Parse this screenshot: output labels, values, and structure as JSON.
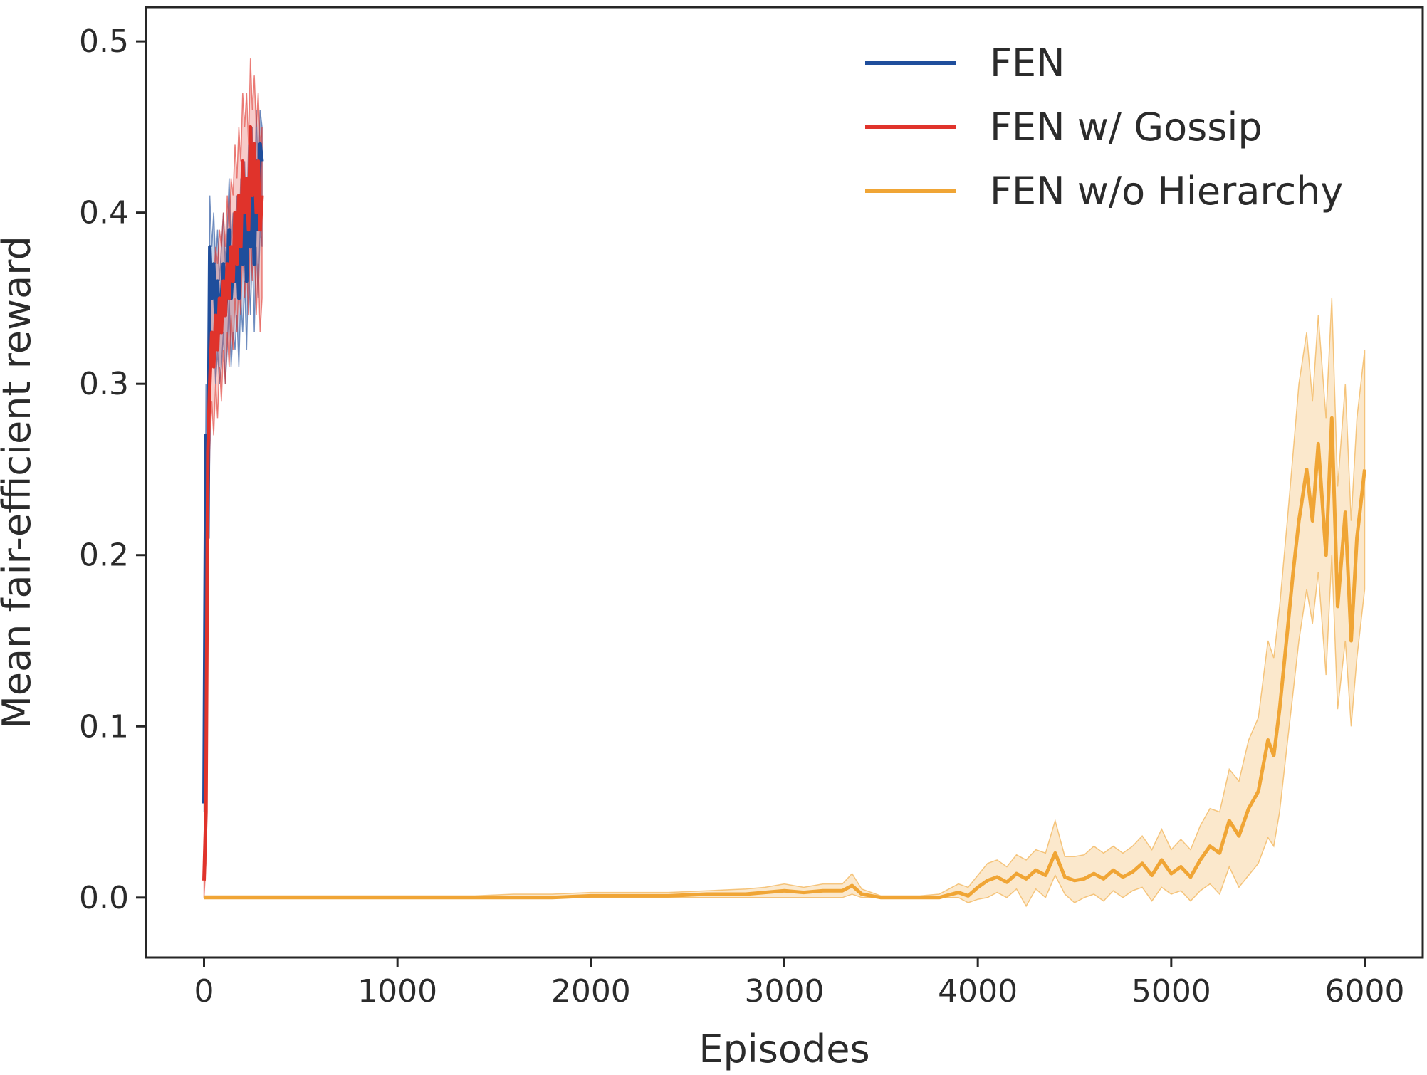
{
  "chart_data": {
    "type": "line",
    "title": "",
    "xlabel": "Episodes",
    "ylabel": "Mean fair-efficient reward",
    "xlim": [
      -300,
      6300
    ],
    "ylim": [
      -0.035,
      0.52
    ],
    "xticks": [
      0,
      1000,
      2000,
      3000,
      4000,
      5000,
      6000
    ],
    "yticks": [
      0.0,
      0.1,
      0.2,
      0.3,
      0.4,
      0.5
    ],
    "xtick_labels": [
      "0",
      "1000",
      "2000",
      "3000",
      "4000",
      "5000",
      "6000"
    ],
    "ytick_labels": [
      "0.0",
      "0.1",
      "0.2",
      "0.3",
      "0.4",
      "0.5"
    ],
    "grid": false,
    "legend_position": "top-right",
    "series": [
      {
        "name": "FEN",
        "color": "#1f4e9c",
        "x": [
          0,
          10,
          20,
          30,
          40,
          50,
          60,
          70,
          80,
          90,
          100,
          110,
          120,
          130,
          140,
          150,
          160,
          170,
          180,
          190,
          200,
          210,
          220,
          230,
          240,
          250,
          260,
          270,
          280,
          290,
          300
        ],
        "values": [
          0.055,
          0.27,
          0.21,
          0.38,
          0.35,
          0.37,
          0.34,
          0.36,
          0.33,
          0.35,
          0.37,
          0.34,
          0.36,
          0.39,
          0.35,
          0.37,
          0.36,
          0.38,
          0.35,
          0.39,
          0.37,
          0.4,
          0.36,
          0.41,
          0.38,
          0.42,
          0.37,
          0.43,
          0.39,
          0.44,
          0.43
        ],
        "band_lower": [
          0.05,
          0.24,
          0.19,
          0.34,
          0.31,
          0.33,
          0.3,
          0.32,
          0.3,
          0.31,
          0.33,
          0.3,
          0.32,
          0.35,
          0.31,
          0.33,
          0.32,
          0.34,
          0.31,
          0.35,
          0.33,
          0.36,
          0.32,
          0.37,
          0.34,
          0.38,
          0.33,
          0.38,
          0.35,
          0.39,
          0.38
        ],
        "band_upper": [
          0.06,
          0.3,
          0.24,
          0.41,
          0.38,
          0.4,
          0.37,
          0.39,
          0.36,
          0.38,
          0.4,
          0.37,
          0.39,
          0.42,
          0.38,
          0.4,
          0.39,
          0.41,
          0.38,
          0.42,
          0.4,
          0.43,
          0.39,
          0.44,
          0.41,
          0.45,
          0.4,
          0.46,
          0.42,
          0.46,
          0.45
        ]
      },
      {
        "name": "FEN w/ Gossip",
        "color": "#e0332b",
        "x": [
          0,
          10,
          20,
          30,
          40,
          50,
          60,
          70,
          80,
          90,
          100,
          110,
          120,
          130,
          140,
          150,
          160,
          170,
          180,
          190,
          200,
          210,
          220,
          230,
          240,
          250,
          260,
          270,
          280,
          290,
          300
        ],
        "values": [
          0.01,
          0.05,
          0.26,
          0.3,
          0.33,
          0.31,
          0.34,
          0.32,
          0.35,
          0.33,
          0.36,
          0.34,
          0.37,
          0.35,
          0.38,
          0.36,
          0.4,
          0.37,
          0.41,
          0.38,
          0.43,
          0.4,
          0.42,
          0.39,
          0.45,
          0.41,
          0.44,
          0.4,
          0.43,
          0.39,
          0.41
        ],
        "band_lower": [
          0.0,
          0.02,
          0.2,
          0.26,
          0.29,
          0.27,
          0.3,
          0.28,
          0.31,
          0.29,
          0.32,
          0.3,
          0.33,
          0.31,
          0.34,
          0.32,
          0.35,
          0.33,
          0.36,
          0.34,
          0.38,
          0.35,
          0.37,
          0.34,
          0.39,
          0.36,
          0.38,
          0.34,
          0.37,
          0.33,
          0.35
        ],
        "band_upper": [
          0.03,
          0.1,
          0.3,
          0.34,
          0.37,
          0.36,
          0.38,
          0.37,
          0.39,
          0.38,
          0.4,
          0.38,
          0.41,
          0.39,
          0.42,
          0.41,
          0.44,
          0.42,
          0.45,
          0.43,
          0.47,
          0.45,
          0.47,
          0.44,
          0.49,
          0.46,
          0.48,
          0.45,
          0.47,
          0.44,
          0.45
        ]
      },
      {
        "name": "FEN w/o Hierarchy",
        "color": "#f0a535",
        "x": [
          0,
          200,
          400,
          600,
          800,
          1000,
          1200,
          1400,
          1600,
          1800,
          2000,
          2200,
          2400,
          2600,
          2800,
          2900,
          3000,
          3100,
          3200,
          3300,
          3350,
          3400,
          3500,
          3600,
          3700,
          3800,
          3900,
          3950,
          4000,
          4050,
          4100,
          4150,
          4200,
          4250,
          4300,
          4350,
          4400,
          4450,
          4500,
          4550,
          4600,
          4650,
          4700,
          4750,
          4800,
          4850,
          4900,
          4950,
          5000,
          5050,
          5100,
          5150,
          5200,
          5250,
          5300,
          5350,
          5400,
          5450,
          5500,
          5530,
          5560,
          5600,
          5630,
          5660,
          5700,
          5730,
          5760,
          5800,
          5830,
          5860,
          5900,
          5930,
          5960,
          6000
        ],
        "values": [
          0.0,
          0.0,
          0.0,
          0.0,
          0.0,
          0.0,
          0.0,
          0.0,
          0.0,
          0.0,
          0.001,
          0.001,
          0.001,
          0.002,
          0.002,
          0.003,
          0.004,
          0.003,
          0.004,
          0.004,
          0.007,
          0.002,
          0.0,
          0.0,
          0.0,
          0.0,
          0.003,
          0.001,
          0.006,
          0.01,
          0.012,
          0.009,
          0.014,
          0.011,
          0.016,
          0.013,
          0.026,
          0.012,
          0.01,
          0.011,
          0.014,
          0.011,
          0.016,
          0.012,
          0.015,
          0.02,
          0.013,
          0.022,
          0.014,
          0.018,
          0.012,
          0.022,
          0.03,
          0.026,
          0.045,
          0.036,
          0.052,
          0.062,
          0.092,
          0.083,
          0.11,
          0.155,
          0.19,
          0.22,
          0.25,
          0.22,
          0.265,
          0.2,
          0.28,
          0.17,
          0.225,
          0.15,
          0.21,
          0.25
        ],
        "band_lower": [
          0.0,
          0.0,
          0.0,
          0.0,
          0.0,
          0.0,
          0.0,
          0.0,
          0.0,
          0.0,
          0.0,
          0.0,
          0.0,
          0.0,
          0.0,
          0.0,
          0.0,
          0.0,
          0.0,
          0.0,
          0.002,
          0.0,
          0.0,
          0.0,
          0.0,
          0.0,
          0.0,
          -0.003,
          -0.001,
          0.0,
          0.003,
          0.0,
          0.005,
          -0.005,
          0.005,
          0.0,
          0.013,
          0.002,
          -0.003,
          0.0,
          0.002,
          -0.002,
          0.004,
          0.0,
          0.004,
          0.006,
          -0.002,
          0.006,
          0.002,
          0.004,
          -0.002,
          0.004,
          0.008,
          0.002,
          0.018,
          0.006,
          0.013,
          0.02,
          0.035,
          0.03,
          0.05,
          0.09,
          0.12,
          0.15,
          0.18,
          0.16,
          0.19,
          0.13,
          0.2,
          0.11,
          0.15,
          0.1,
          0.14,
          0.18
        ],
        "band_upper": [
          0.001,
          0.001,
          0.001,
          0.001,
          0.001,
          0.001,
          0.001,
          0.001,
          0.002,
          0.002,
          0.003,
          0.003,
          0.003,
          0.004,
          0.005,
          0.006,
          0.008,
          0.006,
          0.008,
          0.008,
          0.014,
          0.005,
          0.001,
          0.001,
          0.001,
          0.002,
          0.008,
          0.006,
          0.013,
          0.02,
          0.022,
          0.018,
          0.025,
          0.022,
          0.028,
          0.026,
          0.045,
          0.024,
          0.024,
          0.025,
          0.03,
          0.026,
          0.03,
          0.026,
          0.03,
          0.036,
          0.028,
          0.04,
          0.028,
          0.034,
          0.028,
          0.042,
          0.052,
          0.05,
          0.075,
          0.068,
          0.092,
          0.105,
          0.15,
          0.14,
          0.17,
          0.22,
          0.26,
          0.3,
          0.33,
          0.29,
          0.34,
          0.28,
          0.35,
          0.24,
          0.3,
          0.22,
          0.28,
          0.32
        ]
      }
    ]
  }
}
